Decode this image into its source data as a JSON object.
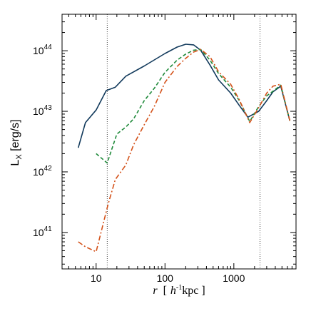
{
  "chart_data": {
    "type": "line",
    "title": "",
    "xlabel": {
      "r": "r",
      "open": "[",
      "h": "h",
      "sup": "-1",
      "unit": "kpc ]"
    },
    "ylabel": {
      "main": "L",
      "sub": "X",
      "unit": " [erg/s]"
    },
    "x_scale": "log",
    "y_scale": "log",
    "xlim": [
      3.2,
      8000
    ],
    "ylim": [
      2.5e+40,
      4e+44
    ],
    "x_ticks": [
      {
        "value": 10,
        "label": "10"
      },
      {
        "value": 100,
        "label": "100"
      },
      {
        "value": 1000,
        "label": "1000"
      }
    ],
    "y_ticks": [
      {
        "value": 1e+41,
        "base": "10",
        "exp": "41"
      },
      {
        "value": 1e+42,
        "base": "10",
        "exp": "42"
      },
      {
        "value": 1e+43,
        "base": "10",
        "exp": "43"
      },
      {
        "value": 1e+44,
        "base": "10",
        "exp": "44"
      }
    ],
    "vlines": [
      14.5,
      2400
    ],
    "grid": false,
    "series": [
      {
        "color": "#123a5c",
        "style": "solid",
        "points": [
          [
            5.5,
            2.5e+42
          ],
          [
            7,
            6.5e+42
          ],
          [
            10,
            1.05e+43
          ],
          [
            14,
            2.2e+43
          ],
          [
            19,
            2.5e+43
          ],
          [
            27,
            3.8e+43
          ],
          [
            50,
            5.6e+43
          ],
          [
            100,
            9e+43
          ],
          [
            150,
            1.15e+44
          ],
          [
            200,
            1.28e+44
          ],
          [
            260,
            1.25e+44
          ],
          [
            330,
            1.02e+44
          ],
          [
            450,
            5.8e+43
          ],
          [
            600,
            3.3e+43
          ],
          [
            900,
            2e+43
          ],
          [
            1200,
            1.25e+43
          ],
          [
            1600,
            8e+42
          ],
          [
            2300,
            1e+43
          ],
          [
            3000,
            1.5e+43
          ],
          [
            3700,
            2.1e+43
          ],
          [
            4800,
            2.6e+43
          ],
          [
            6500,
            7e+42
          ]
        ]
      },
      {
        "color": "#1f8a3a",
        "style": "dashed",
        "points": [
          [
            10,
            2e+42
          ],
          [
            14.5,
            1.4e+42
          ],
          [
            20,
            4.2e+42
          ],
          [
            27,
            5.5e+42
          ],
          [
            35,
            7.5e+42
          ],
          [
            50,
            1.5e+43
          ],
          [
            70,
            2.4e+43
          ],
          [
            100,
            4.4e+43
          ],
          [
            150,
            7e+43
          ],
          [
            200,
            8.8e+43
          ],
          [
            260,
            1.02e+44
          ],
          [
            330,
            1.05e+44
          ],
          [
            450,
            7e+43
          ],
          [
            600,
            4.2e+43
          ],
          [
            900,
            2.5e+43
          ],
          [
            1200,
            1.5e+43
          ],
          [
            1700,
            6.8e+42
          ],
          [
            2300,
            1.2e+43
          ],
          [
            3000,
            1.8e+43
          ],
          [
            3800,
            2.2e+43
          ],
          [
            4800,
            2.7e+43
          ],
          [
            6500,
            7e+42
          ]
        ]
      },
      {
        "color": "#d4521a",
        "style": "dashdot",
        "points": [
          [
            5.5,
            7e+40
          ],
          [
            7,
            5.8e+40
          ],
          [
            10,
            4.8e+40
          ],
          [
            15,
            3e+41
          ],
          [
            19,
            7.5e+41
          ],
          [
            27,
            1.3e+42
          ],
          [
            35,
            2.8e+42
          ],
          [
            50,
            6e+42
          ],
          [
            70,
            1.2e+43
          ],
          [
            100,
            3e+43
          ],
          [
            150,
            5.5e+43
          ],
          [
            200,
            7.5e+43
          ],
          [
            260,
            9.5e+43
          ],
          [
            330,
            1.05e+44
          ],
          [
            450,
            8e+43
          ],
          [
            600,
            4.5e+43
          ],
          [
            900,
            2.8e+43
          ],
          [
            1200,
            1.55e+43
          ],
          [
            1700,
            6.5e+42
          ],
          [
            2300,
            1.15e+43
          ],
          [
            3000,
            2e+43
          ],
          [
            3700,
            2.6e+43
          ],
          [
            4800,
            2.8e+43
          ],
          [
            6500,
            7e+42
          ]
        ]
      }
    ]
  }
}
